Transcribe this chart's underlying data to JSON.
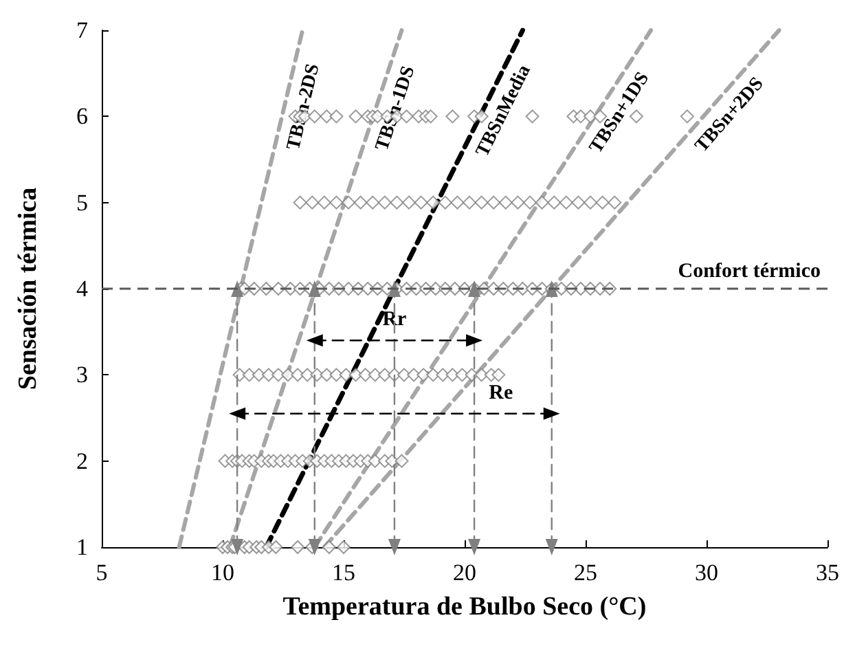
{
  "chart_data": {
    "type": "scatter",
    "xlabel": "Temperatura de Bulbo Seco (°C)",
    "ylabel": "Sensación térmica",
    "xlim": [
      5,
      35
    ],
    "xticks": [
      5,
      10,
      15,
      20,
      25,
      30,
      35
    ],
    "ylim": [
      1,
      7
    ],
    "yticks": [
      1,
      2,
      3,
      4,
      5,
      6,
      7
    ],
    "grid": false,
    "legend": false,
    "series": [
      {
        "color": "#808080",
        "marker": "diamond",
        "x": [
          10.0,
          10.2,
          10.4,
          10.5,
          10.9,
          11.1,
          11.4,
          11.6,
          11.9,
          12.2,
          13.1,
          13.7,
          14.4,
          15.0,
          10.1,
          10.4,
          10.6,
          10.8,
          11.1,
          11.3,
          11.6,
          11.9,
          12.1,
          12.4,
          12.7,
          13.0,
          13.3,
          13.6,
          13.9,
          14.2,
          14.5,
          14.8,
          15.1,
          15.4,
          15.7,
          16.0,
          16.3,
          16.7,
          17.0,
          17.4,
          10.7,
          11.1,
          11.5,
          11.9,
          12.3,
          12.7,
          13.1,
          13.5,
          13.9,
          14.3,
          14.7,
          15.1,
          15.5,
          15.9,
          16.3,
          16.7,
          17.1,
          17.5,
          17.9,
          18.3,
          18.7,
          19.1,
          19.5,
          19.9,
          20.3,
          20.7,
          21.1,
          21.4,
          10.75,
          10.9,
          11.3,
          11.8,
          12.3,
          12.8,
          13.2,
          13.6,
          14.0,
          14.4,
          14.8,
          15.2,
          15.6,
          16.0,
          16.4,
          16.8,
          17.2,
          17.6,
          18.0,
          18.4,
          18.8,
          19.2,
          19.6,
          20.0,
          20.4,
          20.8,
          21.2,
          21.6,
          22.0,
          22.4,
          22.8,
          23.2,
          23.6,
          24.0,
          24.4,
          24.8,
          25.2,
          25.6,
          26.0,
          13.2,
          13.7,
          14.2,
          14.7,
          15.2,
          15.7,
          16.2,
          16.7,
          17.2,
          17.7,
          18.2,
          18.7,
          19.2,
          19.7,
          20.2,
          20.7,
          21.2,
          21.7,
          22.2,
          22.7,
          23.2,
          23.7,
          24.2,
          24.7,
          25.2,
          25.7,
          26.2,
          13.0,
          13.2,
          13.4,
          13.8,
          14.3,
          14.7,
          15.5,
          16.0,
          16.2,
          16.4,
          16.8,
          17.2,
          17.6,
          18.1,
          18.4,
          18.6,
          19.5,
          20.4,
          20.7,
          22.8,
          24.5,
          24.8,
          25.2,
          25.6,
          27.1,
          29.2
        ],
        "values": [
          1,
          1,
          1,
          1,
          1,
          1,
          1,
          1,
          1,
          1,
          1,
          1,
          1,
          1,
          2,
          2,
          2,
          2,
          2,
          2,
          2,
          2,
          2,
          2,
          2,
          2,
          2,
          2,
          2,
          2,
          2,
          2,
          2,
          2,
          2,
          2,
          2,
          2,
          2,
          2,
          3,
          3,
          3,
          3,
          3,
          3,
          3,
          3,
          3,
          3,
          3,
          3,
          3,
          3,
          3,
          3,
          3,
          3,
          3,
          3,
          3,
          3,
          3,
          3,
          3,
          3,
          3,
          3,
          4,
          4,
          4,
          4,
          4,
          4,
          4,
          4,
          4,
          4,
          4,
          4,
          4,
          4,
          4,
          4,
          4,
          4,
          4,
          4,
          4,
          4,
          4,
          4,
          4,
          4,
          4,
          4,
          4,
          4,
          4,
          4,
          4,
          4,
          4,
          4,
          4,
          4,
          4,
          5,
          5,
          5,
          5,
          5,
          5,
          5,
          5,
          5,
          5,
          5,
          5,
          5,
          5,
          5,
          5,
          5,
          5,
          5,
          5,
          5,
          5,
          5,
          5,
          5,
          5,
          5,
          6,
          6,
          6,
          6,
          6,
          6,
          6,
          6,
          6,
          6,
          6,
          6,
          6,
          6,
          6,
          6,
          6,
          6,
          6,
          6,
          6,
          6,
          6,
          6,
          6,
          6
        ]
      },
      {
        "type": "line",
        "name": "TBSn-2DS",
        "color": "#a6a6a6",
        "line_style": "dashed",
        "marker": "none",
        "x": [
          8.2,
          13.3
        ],
        "values": [
          1,
          7
        ]
      },
      {
        "type": "line",
        "name": "TBSn-1DS",
        "color": "#a6a6a6",
        "line_style": "dashed",
        "marker": "none",
        "x": [
          10.3,
          17.4
        ],
        "values": [
          1,
          7
        ]
      },
      {
        "type": "line",
        "name": "TBSnMedia",
        "color": "#000000",
        "line_style": "dashed",
        "marker": "none",
        "x": [
          11.8,
          22.4
        ],
        "values": [
          1,
          7
        ]
      },
      {
        "type": "line",
        "name": "TBSn+1DS",
        "color": "#a6a6a6",
        "line_style": "dashed",
        "marker": "none",
        "x": [
          13.8,
          27.7
        ],
        "values": [
          1,
          7
        ]
      },
      {
        "type": "line",
        "name": "TBSn+2DS",
        "color": "#a6a6a6",
        "line_style": "dashed",
        "marker": "none",
        "x": [
          14.2,
          33.0
        ],
        "values": [
          1,
          7
        ]
      },
      {
        "type": "line",
        "color": "#808080",
        "line_style": "dashed",
        "marker": "triangle",
        "x": [
          10.6,
          10.6
        ],
        "values": [
          1,
          4
        ]
      },
      {
        "type": "line",
        "color": "#808080",
        "line_style": "dashed",
        "marker": "triangle",
        "x": [
          13.8,
          13.8
        ],
        "values": [
          1,
          4
        ]
      },
      {
        "type": "line",
        "color": "#808080",
        "line_style": "dashed",
        "marker": "triangle",
        "x": [
          17.1,
          17.1
        ],
        "values": [
          1,
          4
        ]
      },
      {
        "type": "line",
        "color": "#808080",
        "line_style": "dashed",
        "marker": "triangle",
        "x": [
          20.4,
          20.4
        ],
        "values": [
          1,
          4
        ]
      },
      {
        "type": "line",
        "color": "#808080",
        "line_style": "dashed",
        "marker": "triangle",
        "x": [
          23.6,
          23.6
        ],
        "values": [
          1,
          4
        ]
      },
      {
        "type": "line",
        "color": "#000000",
        "line_style": "dashed",
        "marker": "triangle",
        "x": [
          13.8,
          20.4
        ],
        "values": [
          3.4,
          3.4
        ]
      },
      {
        "type": "line",
        "color": "#000000",
        "line_style": "dashed",
        "marker": "triangle",
        "x": [
          10.6,
          23.6
        ],
        "values": [
          2.55,
          2.55
        ]
      }
    ],
    "ref_lines": [
      {
        "axis": "y",
        "value": 4,
        "label": "Confort térmico",
        "color": "#595959",
        "line_style": "dashed"
      }
    ],
    "annotations": [
      {
        "text": "Rr",
        "x": 17.1,
        "y": 3.4
      },
      {
        "text": "Re",
        "x": 21.5,
        "y": 2.55
      }
    ]
  }
}
